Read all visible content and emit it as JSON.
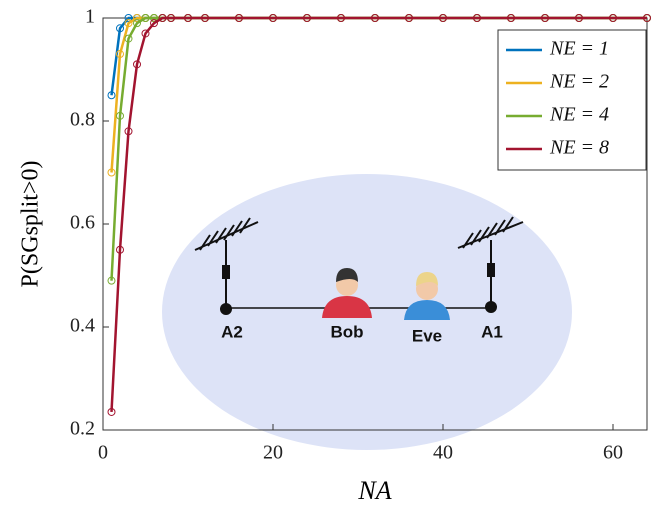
{
  "chart_data": {
    "type": "line",
    "xlabel": "NA",
    "ylabel": "P(SGsplit>0)",
    "x": [
      1,
      2,
      3,
      4,
      5,
      6,
      7,
      8,
      10,
      12,
      16,
      20,
      24,
      28,
      32,
      36,
      40,
      44,
      48,
      52,
      56,
      60,
      64
    ],
    "series": [
      {
        "name": "NE = 1",
        "color": "#0072bd",
        "values": [
          0.85,
          0.98,
          1,
          1,
          1,
          1,
          1,
          1,
          1,
          1,
          1,
          1,
          1,
          1,
          1,
          1,
          1,
          1,
          1,
          1,
          1,
          1,
          1
        ]
      },
      {
        "name": "NE = 2",
        "color": "#edb120",
        "values": [
          0.7,
          0.93,
          0.99,
          1,
          1,
          1,
          1,
          1,
          1,
          1,
          1,
          1,
          1,
          1,
          1,
          1,
          1,
          1,
          1,
          1,
          1,
          1,
          1
        ]
      },
      {
        "name": "NE = 4",
        "color": "#77ac30",
        "values": [
          0.49,
          0.81,
          0.96,
          0.99,
          1,
          1,
          1,
          1,
          1,
          1,
          1,
          1,
          1,
          1,
          1,
          1,
          1,
          1,
          1,
          1,
          1,
          1,
          1
        ]
      },
      {
        "name": "NE = 8",
        "color": "#a2142f",
        "values": [
          0.235,
          0.55,
          0.78,
          0.91,
          0.97,
          0.99,
          1,
          1,
          1,
          1,
          1,
          1,
          1,
          1,
          1,
          1,
          1,
          1,
          1,
          1,
          1,
          1,
          1
        ]
      }
    ],
    "xlim": [
      0,
      64
    ],
    "ylim": [
      0.2,
      1
    ],
    "xticks": [
      0,
      20,
      40,
      60
    ],
    "yticks": [
      0.2,
      0.4,
      0.6,
      0.8,
      1
    ],
    "grid": false,
    "legend": "upper right",
    "annotations": [
      "A2",
      "Bob",
      "Eve",
      "A1"
    ]
  }
}
